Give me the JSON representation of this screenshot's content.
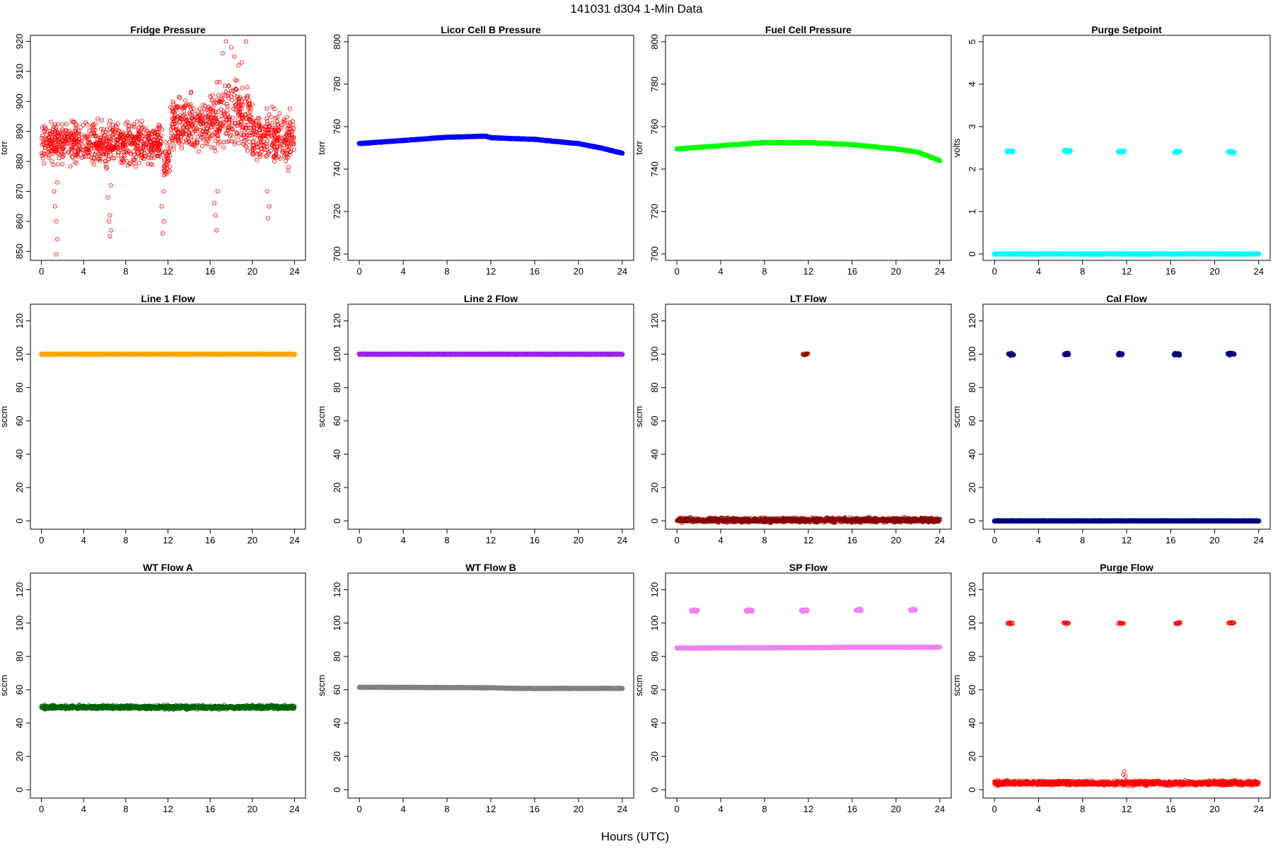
{
  "figure": {
    "title": "141031    d304    1-Min Data",
    "xlabel": "Hours (UTC)"
  },
  "chart_data": [
    {
      "type": "scatter",
      "title": "Fridge Pressure",
      "ylabel": "torr",
      "color": "#ff0000",
      "marker": "open-circle",
      "xlim": [
        0,
        24
      ],
      "ylim": [
        847,
        922
      ],
      "xticks": [
        0,
        4,
        8,
        12,
        16,
        20,
        24
      ],
      "yticks": [
        850,
        860,
        870,
        880,
        890,
        900,
        910,
        920
      ],
      "series": [
        {
          "segments": [
            {
              "x0": 0,
              "x1": 11.5,
              "center": 886,
              "spread": 6
            },
            {
              "x0": 11.6,
              "x1": 12.2,
              "center": 880,
              "spread": 6
            },
            {
              "x0": 12.2,
              "x1": 16,
              "center": 892,
              "spread": 8
            },
            {
              "x0": 16,
              "x1": 20,
              "center": 895,
              "spread": 10
            },
            {
              "x0": 20,
              "x1": 24,
              "center": 888,
              "spread": 8
            }
          ],
          "points": [
            [
              1.4,
              849
            ],
            [
              1.5,
              854
            ],
            [
              1.4,
              860
            ],
            [
              1.3,
              865
            ],
            [
              1.2,
              870
            ],
            [
              1.5,
              873
            ],
            [
              6.5,
              855
            ],
            [
              6.6,
              857
            ],
            [
              6.4,
              860
            ],
            [
              6.5,
              862
            ],
            [
              6.3,
              868
            ],
            [
              6.6,
              872
            ],
            [
              11.5,
              856
            ],
            [
              11.6,
              860
            ],
            [
              11.4,
              865
            ],
            [
              11.6,
              870
            ],
            [
              16.6,
              857
            ],
            [
              16.5,
              862
            ],
            [
              16.4,
              866
            ],
            [
              16.7,
              870
            ],
            [
              21.5,
              861
            ],
            [
              21.6,
              865
            ],
            [
              21.4,
              870
            ],
            [
              17.5,
              920
            ],
            [
              19.4,
              920
            ],
            [
              18.0,
              918
            ],
            [
              17.2,
              916
            ],
            [
              18.3,
              915
            ],
            [
              19.0,
              913
            ],
            [
              18.7,
              912
            ]
          ]
        }
      ]
    },
    {
      "type": "scatter",
      "title": "Licor Cell B Pressure",
      "ylabel": "torr",
      "color": "#0000ff",
      "marker": "filled-circle",
      "xlim": [
        0,
        24
      ],
      "ylim": [
        697,
        803
      ],
      "xticks": [
        0,
        4,
        8,
        12,
        16,
        20,
        24
      ],
      "yticks": [
        700,
        720,
        740,
        760,
        780,
        800
      ],
      "series": [
        {
          "curve": [
            [
              0,
              752
            ],
            [
              4,
              753.5
            ],
            [
              8,
              755
            ],
            [
              11.5,
              755.5
            ],
            [
              12,
              754.8
            ],
            [
              16,
              754
            ],
            [
              20,
              752
            ],
            [
              22,
              750
            ],
            [
              24,
              747.5
            ]
          ]
        }
      ]
    },
    {
      "type": "scatter",
      "title": "Fuel Cell Pressure",
      "ylabel": "torr",
      "color": "#00ff00",
      "marker": "filled-circle",
      "xlim": [
        0,
        24
      ],
      "ylim": [
        697,
        803
      ],
      "xticks": [
        0,
        4,
        8,
        12,
        16,
        20,
        24
      ],
      "yticks": [
        700,
        720,
        740,
        760,
        780,
        800
      ],
      "series": [
        {
          "curve": [
            [
              0,
              749.5
            ],
            [
              4,
              751
            ],
            [
              8,
              752.5
            ],
            [
              12,
              752.5
            ],
            [
              16,
              751.5
            ],
            [
              20,
              749.5
            ],
            [
              22,
              748
            ],
            [
              24,
              744
            ]
          ]
        }
      ]
    },
    {
      "type": "scatter",
      "title": "Purge Setpoint",
      "ylabel": "volts",
      "color": "#00ffff",
      "marker": "filled-circle",
      "xlim": [
        0,
        24
      ],
      "ylim": [
        -0.15,
        5.15
      ],
      "xticks": [
        0,
        4,
        8,
        12,
        16,
        20,
        24
      ],
      "yticks": [
        0,
        1,
        2,
        3,
        4,
        5
      ],
      "series": [
        {
          "curve": [
            [
              0,
              0
            ],
            [
              24,
              0
            ]
          ],
          "clusters": [
            [
              1.4,
              2.42
            ],
            [
              6.6,
              2.43
            ],
            [
              11.5,
              2.42
            ],
            [
              16.6,
              2.41
            ],
            [
              21.5,
              2.4
            ]
          ]
        }
      ]
    },
    {
      "type": "scatter",
      "title": "Line 1 Flow",
      "ylabel": "sccm",
      "color": "#ffa500",
      "marker": "filled-circle",
      "xlim": [
        0,
        24
      ],
      "ylim": [
        -5,
        130
      ],
      "xticks": [
        0,
        4,
        8,
        12,
        16,
        20,
        24
      ],
      "yticks": [
        0,
        20,
        40,
        60,
        80,
        100,
        120
      ],
      "series": [
        {
          "curve": [
            [
              0,
              100
            ],
            [
              24,
              100
            ]
          ]
        }
      ]
    },
    {
      "type": "scatter",
      "title": "Line 2 Flow",
      "ylabel": "sccm",
      "color": "#a020f0",
      "marker": "filled-circle",
      "xlim": [
        0,
        24
      ],
      "ylim": [
        -5,
        130
      ],
      "xticks": [
        0,
        4,
        8,
        12,
        16,
        20,
        24
      ],
      "yticks": [
        0,
        20,
        40,
        60,
        80,
        100,
        120
      ],
      "series": [
        {
          "curve": [
            [
              0,
              100
            ],
            [
              24,
              100
            ]
          ]
        }
      ]
    },
    {
      "type": "scatter",
      "title": "LT Flow",
      "ylabel": "sccm",
      "color": "#8b0000",
      "marker": "open-circle",
      "xlim": [
        0,
        24
      ],
      "ylim": [
        -5,
        130
      ],
      "xticks": [
        0,
        4,
        8,
        12,
        16,
        20,
        24
      ],
      "yticks": [
        0,
        20,
        40,
        60,
        80,
        100,
        120
      ],
      "series": [
        {
          "segments": [
            {
              "x0": 0,
              "x1": 24,
              "center": 0.5,
              "spread": 1.2
            }
          ],
          "clusters": [
            [
              11.7,
              100
            ]
          ]
        }
      ]
    },
    {
      "type": "scatter",
      "title": "Cal Flow",
      "ylabel": "sccm",
      "color": "#000080",
      "marker": "filled-circle",
      "xlim": [
        0,
        24
      ],
      "ylim": [
        -5,
        130
      ],
      "xticks": [
        0,
        4,
        8,
        12,
        16,
        20,
        24
      ],
      "yticks": [
        0,
        20,
        40,
        60,
        80,
        100,
        120
      ],
      "series": [
        {
          "curve": [
            [
              0,
              0
            ],
            [
              24,
              0
            ]
          ],
          "clusters": [
            [
              1.5,
              100
            ],
            [
              6.6,
              100
            ],
            [
              11.5,
              100
            ],
            [
              16.6,
              100
            ],
            [
              21.5,
              100
            ]
          ]
        }
      ]
    },
    {
      "type": "scatter",
      "title": "WT Flow A",
      "ylabel": "sccm",
      "color": "#006400",
      "marker": "open-circle",
      "xlim": [
        0,
        24
      ],
      "ylim": [
        -5,
        130
      ],
      "xticks": [
        0,
        4,
        8,
        12,
        16,
        20,
        24
      ],
      "yticks": [
        0,
        20,
        40,
        60,
        80,
        100,
        120
      ],
      "series": [
        {
          "segments": [
            {
              "x0": 0,
              "x1": 24,
              "center": 49.5,
              "spread": 1
            }
          ]
        }
      ]
    },
    {
      "type": "scatter",
      "title": "WT Flow B",
      "ylabel": "sccm",
      "color": "#808080",
      "marker": "filled-circle",
      "xlim": [
        0,
        24
      ],
      "ylim": [
        -5,
        130
      ],
      "xticks": [
        0,
        4,
        8,
        12,
        16,
        20,
        24
      ],
      "yticks": [
        0,
        20,
        40,
        60,
        80,
        100,
        120
      ],
      "series": [
        {
          "curve": [
            [
              0,
              61.5
            ],
            [
              12,
              61.2
            ],
            [
              14,
              60.8
            ],
            [
              24,
              60.8
            ]
          ]
        }
      ]
    },
    {
      "type": "scatter",
      "title": "SP Flow",
      "ylabel": "sccm",
      "color": "#ee82ee",
      "marker": "filled-circle",
      "xlim": [
        0,
        24
      ],
      "ylim": [
        -5,
        130
      ],
      "xticks": [
        0,
        4,
        8,
        12,
        16,
        20,
        24
      ],
      "yticks": [
        0,
        20,
        40,
        60,
        80,
        100,
        120
      ],
      "series": [
        {
          "curve": [
            [
              0,
              85
            ],
            [
              12,
              85.2
            ],
            [
              16,
              85.5
            ],
            [
              24,
              85.5
            ]
          ],
          "clusters": [
            [
              1.6,
              107.5
            ],
            [
              6.6,
              107.5
            ],
            [
              11.6,
              107.5
            ],
            [
              16.6,
              107.8
            ],
            [
              21.6,
              107.8
            ]
          ]
        }
      ]
    },
    {
      "type": "scatter",
      "title": "Purge Flow",
      "ylabel": "sccm",
      "color": "#ff0000",
      "marker": "open-circle",
      "xlim": [
        0,
        24
      ],
      "ylim": [
        -5,
        130
      ],
      "xticks": [
        0,
        4,
        8,
        12,
        16,
        20,
        24
      ],
      "yticks": [
        0,
        20,
        40,
        60,
        80,
        100,
        120
      ],
      "series": [
        {
          "segments": [
            {
              "x0": 0,
              "x1": 24,
              "center": 4,
              "spread": 1.2
            }
          ],
          "clusters": [
            [
              1.4,
              100
            ],
            [
              6.5,
              100
            ],
            [
              11.5,
              100
            ],
            [
              16.6,
              100
            ],
            [
              21.5,
              100
            ]
          ],
          "points": [
            [
              11.8,
              11
            ],
            [
              11.7,
              9
            ],
            [
              11.9,
              8
            ]
          ]
        }
      ]
    }
  ]
}
